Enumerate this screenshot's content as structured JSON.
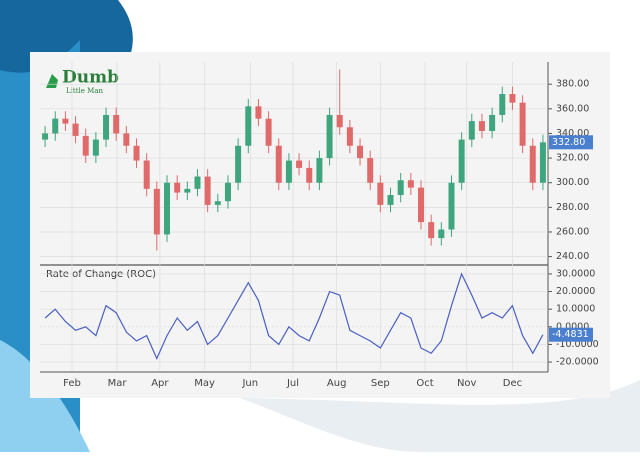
{
  "logo": {
    "title": "Dumb",
    "subtitle": "Little Man"
  },
  "chart_data": [
    {
      "type": "candlestick",
      "open": [
        335,
        340,
        352,
        348,
        338,
        322,
        335,
        355,
        340,
        330,
        318,
        295,
        258,
        300,
        292,
        295,
        305,
        282,
        285,
        300,
        330,
        362,
        352,
        330,
        300,
        318,
        312,
        300,
        320,
        355,
        345,
        330,
        320,
        300,
        282,
        290,
        302,
        296,
        268,
        255,
        262,
        300,
        335,
        350,
        342,
        355,
        372,
        365,
        330,
        300
      ],
      "high": [
        346,
        358,
        358,
        354,
        344,
        341,
        361,
        361,
        346,
        336,
        324,
        301,
        306,
        306,
        301,
        311,
        311,
        291,
        306,
        336,
        368,
        368,
        358,
        336,
        324,
        324,
        318,
        326,
        361,
        392,
        351,
        336,
        326,
        306,
        296,
        308,
        308,
        302,
        274,
        268,
        306,
        341,
        356,
        356,
        361,
        378,
        378,
        371,
        336,
        339
      ],
      "low": [
        329,
        334,
        342,
        332,
        316,
        316,
        329,
        334,
        324,
        312,
        289,
        245,
        252,
        286,
        286,
        289,
        276,
        276,
        279,
        294,
        324,
        346,
        324,
        294,
        294,
        306,
        294,
        294,
        314,
        339,
        324,
        314,
        294,
        276,
        276,
        284,
        290,
        262,
        249,
        249,
        256,
        294,
        329,
        336,
        336,
        349,
        359,
        324,
        294,
        294
      ],
      "close": [
        340,
        352,
        348,
        338,
        322,
        335,
        355,
        340,
        330,
        318,
        295,
        258,
        300,
        292,
        295,
        305,
        282,
        285,
        300,
        330,
        362,
        352,
        330,
        300,
        318,
        312,
        300,
        320,
        355,
        345,
        330,
        320,
        300,
        282,
        290,
        302,
        296,
        268,
        255,
        262,
        300,
        335,
        350,
        342,
        355,
        372,
        365,
        330,
        300,
        332.8
      ],
      "up_color": "#3fa57f",
      "down_color": "#e06a6a",
      "last_label": {
        "value": 332.8,
        "label": "332.80"
      },
      "xlim": [
        -0.5,
        49.5
      ],
      "xticks": [
        {
          "value": 2.65,
          "label": "Feb"
        },
        {
          "value": 7.08,
          "label": "Mar"
        },
        {
          "value": 11.3,
          "label": "Apr"
        },
        {
          "value": 15.7,
          "label": "May"
        },
        {
          "value": 20.2,
          "label": "Jun"
        },
        {
          "value": 24.4,
          "label": "Jul"
        },
        {
          "value": 28.7,
          "label": "Aug"
        },
        {
          "value": 33.0,
          "label": "Sep"
        },
        {
          "value": 37.4,
          "label": "Oct"
        },
        {
          "value": 41.5,
          "label": "Nov"
        },
        {
          "value": 46.0,
          "label": "Dec"
        }
      ],
      "ylim": [
        234,
        398
      ],
      "yticks": [
        {
          "value": 240,
          "label": "240.00"
        },
        {
          "value": 260,
          "label": "260.00"
        },
        {
          "value": 280,
          "label": "280.00"
        },
        {
          "value": 300,
          "label": "300.00"
        },
        {
          "value": 320,
          "label": "320.00"
        },
        {
          "value": 340,
          "label": "340.00"
        },
        {
          "value": 360,
          "label": "360.00"
        },
        {
          "value": 380,
          "label": "380.00"
        }
      ],
      "grid": true
    },
    {
      "type": "line",
      "title": "Rate of Change (ROC)",
      "values": [
        5,
        10,
        3,
        -2,
        0,
        -5,
        12,
        8,
        -3,
        -8,
        -5,
        -18,
        -5,
        5,
        -2,
        3,
        -10,
        -5,
        5,
        15,
        25,
        15,
        -5,
        -10,
        0,
        -5,
        -8,
        5,
        20,
        18,
        -2,
        -5,
        -8,
        -12,
        -2,
        8,
        5,
        -12,
        -15,
        -8,
        12,
        30,
        18,
        5,
        8,
        5,
        12,
        -5,
        -15,
        -4.4831
      ],
      "color": "#4a5fc1",
      "last_label": {
        "value": -4.4831,
        "label": "-4.4831"
      },
      "xlim": [
        -0.5,
        49.5
      ],
      "ylim": [
        -24.5,
        34.5
      ],
      "yticks": [
        {
          "value": -20,
          "label": "-20.0000"
        },
        {
          "value": -10,
          "label": "-10.0000"
        },
        {
          "value": 0,
          "label": "0.0000"
        },
        {
          "value": 10,
          "label": "10.0000"
        },
        {
          "value": 20,
          "label": "20.0000"
        },
        {
          "value": 30,
          "label": "30.0000"
        }
      ],
      "grid": true
    }
  ]
}
